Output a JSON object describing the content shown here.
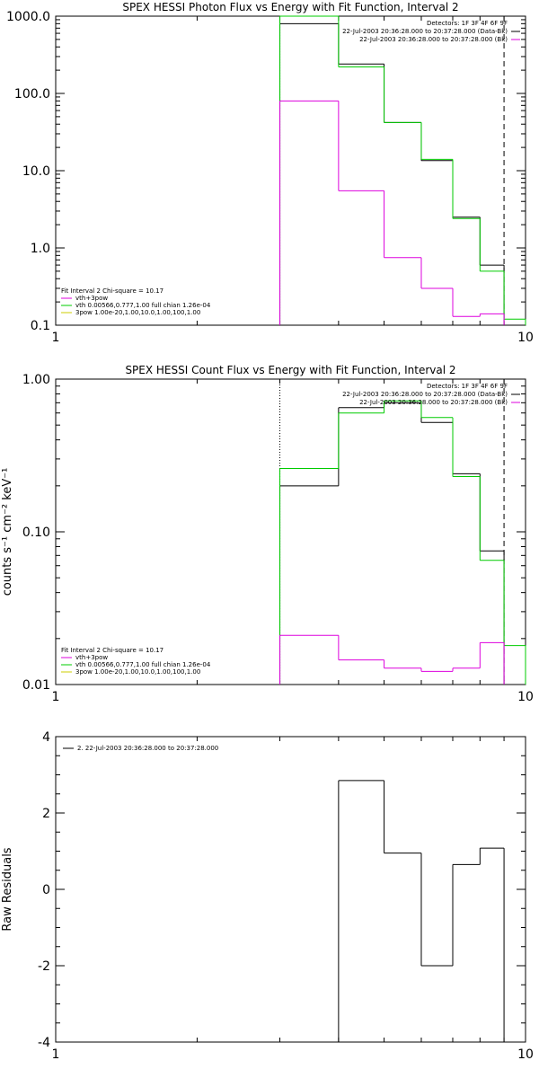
{
  "chart_data": [
    {
      "type": "line",
      "title": "SPEX HESSI Photon Flux vs Energy with Fit Function, Interval 2",
      "xscale": "log",
      "yscale": "log",
      "xlim": [
        1,
        10
      ],
      "ylim": [
        0.1,
        1000
      ],
      "x_ticks": [
        "1",
        "10"
      ],
      "y_ticks": [
        "0.1",
        "1.0",
        "10.0",
        "100.0",
        "1000.0"
      ],
      "markers": [
        {
          "x": 3,
          "style": "dotted",
          "color": "#00c000"
        },
        {
          "x": 9,
          "style": "dashed",
          "color": "#000000"
        }
      ],
      "edges": [
        3,
        4,
        5,
        6,
        7,
        8,
        9,
        10
      ],
      "series": [
        {
          "color": "#000000",
          "values": [
            800,
            240,
            42,
            13.5,
            2.5,
            0.6,
            null
          ]
        },
        {
          "color": "#00cc00",
          "values": [
            1050,
            220,
            42,
            14,
            2.4,
            0.5,
            0.12
          ]
        },
        {
          "color": "#dd00dd",
          "values": [
            80,
            5.5,
            0.75,
            0.3,
            0.13,
            0.14,
            null
          ]
        }
      ],
      "info_top": [
        "Detectors: 1F 3F 4F 6F 9F",
        "22-Jul-2003 20:36:28.000 to 20:37:28.000 (Data-Bk)",
        "22-Jul-2003 20:36:28.000 to 20:37:28.000 (Bk)"
      ],
      "legend_header": "Fit Interval  2   Chi-square = 10.17",
      "legend": [
        {
          "label": "vth+3pow",
          "color": "#dd00dd"
        },
        {
          "label": "vth 0.00566,0.777,1.00   full chian 1.26e-04",
          "color": "#00cc00"
        },
        {
          "label": "3pow 1.00e-20,1.00,10.0,1.00,100,1.00",
          "color": "#cccc00"
        }
      ]
    },
    {
      "type": "line",
      "title": "SPEX HESSI Count Flux vs Energy with Fit Function, Interval 2",
      "ylabel": "counts s⁻¹ cm⁻² keV⁻¹",
      "xscale": "log",
      "yscale": "log",
      "xlim": [
        1,
        10
      ],
      "ylim": [
        0.01,
        1.0
      ],
      "x_ticks": [
        "1",
        "10"
      ],
      "y_ticks": [
        "0.01",
        "0.10",
        "1.00"
      ],
      "markers": [
        {
          "x": 3,
          "style": "dotted",
          "color": "#000000"
        },
        {
          "x": 9,
          "style": "dashed",
          "color": "#000000"
        }
      ],
      "edges": [
        3,
        4,
        5,
        6,
        7,
        8,
        9,
        10
      ],
      "series": [
        {
          "color": "#000000",
          "values": [
            0.2,
            0.65,
            0.7,
            0.52,
            0.24,
            0.075,
            null
          ]
        },
        {
          "color": "#00cc00",
          "values": [
            0.26,
            0.6,
            0.72,
            0.56,
            0.23,
            0.065,
            0.018
          ]
        },
        {
          "color": "#dd00dd",
          "values": [
            0.021,
            0.0145,
            0.0128,
            0.0122,
            0.0128,
            0.0188,
            null
          ]
        }
      ],
      "info_top": [
        "Detectors: 1F 3F 4F 6F 9F",
        "22-Jul-2003 20:36:28.000 to 20:37:28.000 (Data-Bk)",
        "22-Jul-2003 20:36:28.000 to 20:37:28.000 (Bk)"
      ],
      "legend_header": "Fit Interval  2   Chi-square = 10.17",
      "legend": [
        {
          "label": "vth+3pow",
          "color": "#dd00dd"
        },
        {
          "label": "vth 0.00566,0.777,1.00   full chian 1.26e-04",
          "color": "#00cc00"
        },
        {
          "label": "3pow 1.00e-20,1.00,10.0,1.00,100,1.00",
          "color": "#cccc00"
        }
      ]
    },
    {
      "type": "line",
      "ylabel": "Raw Residuals",
      "xscale": "log",
      "yscale": "linear",
      "xlim": [
        1,
        10
      ],
      "ylim": [
        -4,
        4
      ],
      "x_ticks": [
        "1",
        "10"
      ],
      "y_ticks": [
        "-4",
        "-2",
        "0",
        "2",
        "4"
      ],
      "edges": [
        4,
        5,
        6,
        7,
        8,
        9
      ],
      "series": [
        {
          "color": "#000000",
          "values": [
            2.85,
            0.95,
            -2.0,
            0.65,
            1.08
          ]
        }
      ],
      "legend": [
        {
          "label": "2. 22-Jul-2003 20:36:28.000 to 20:37:28.000",
          "color": "#000000"
        }
      ]
    }
  ]
}
